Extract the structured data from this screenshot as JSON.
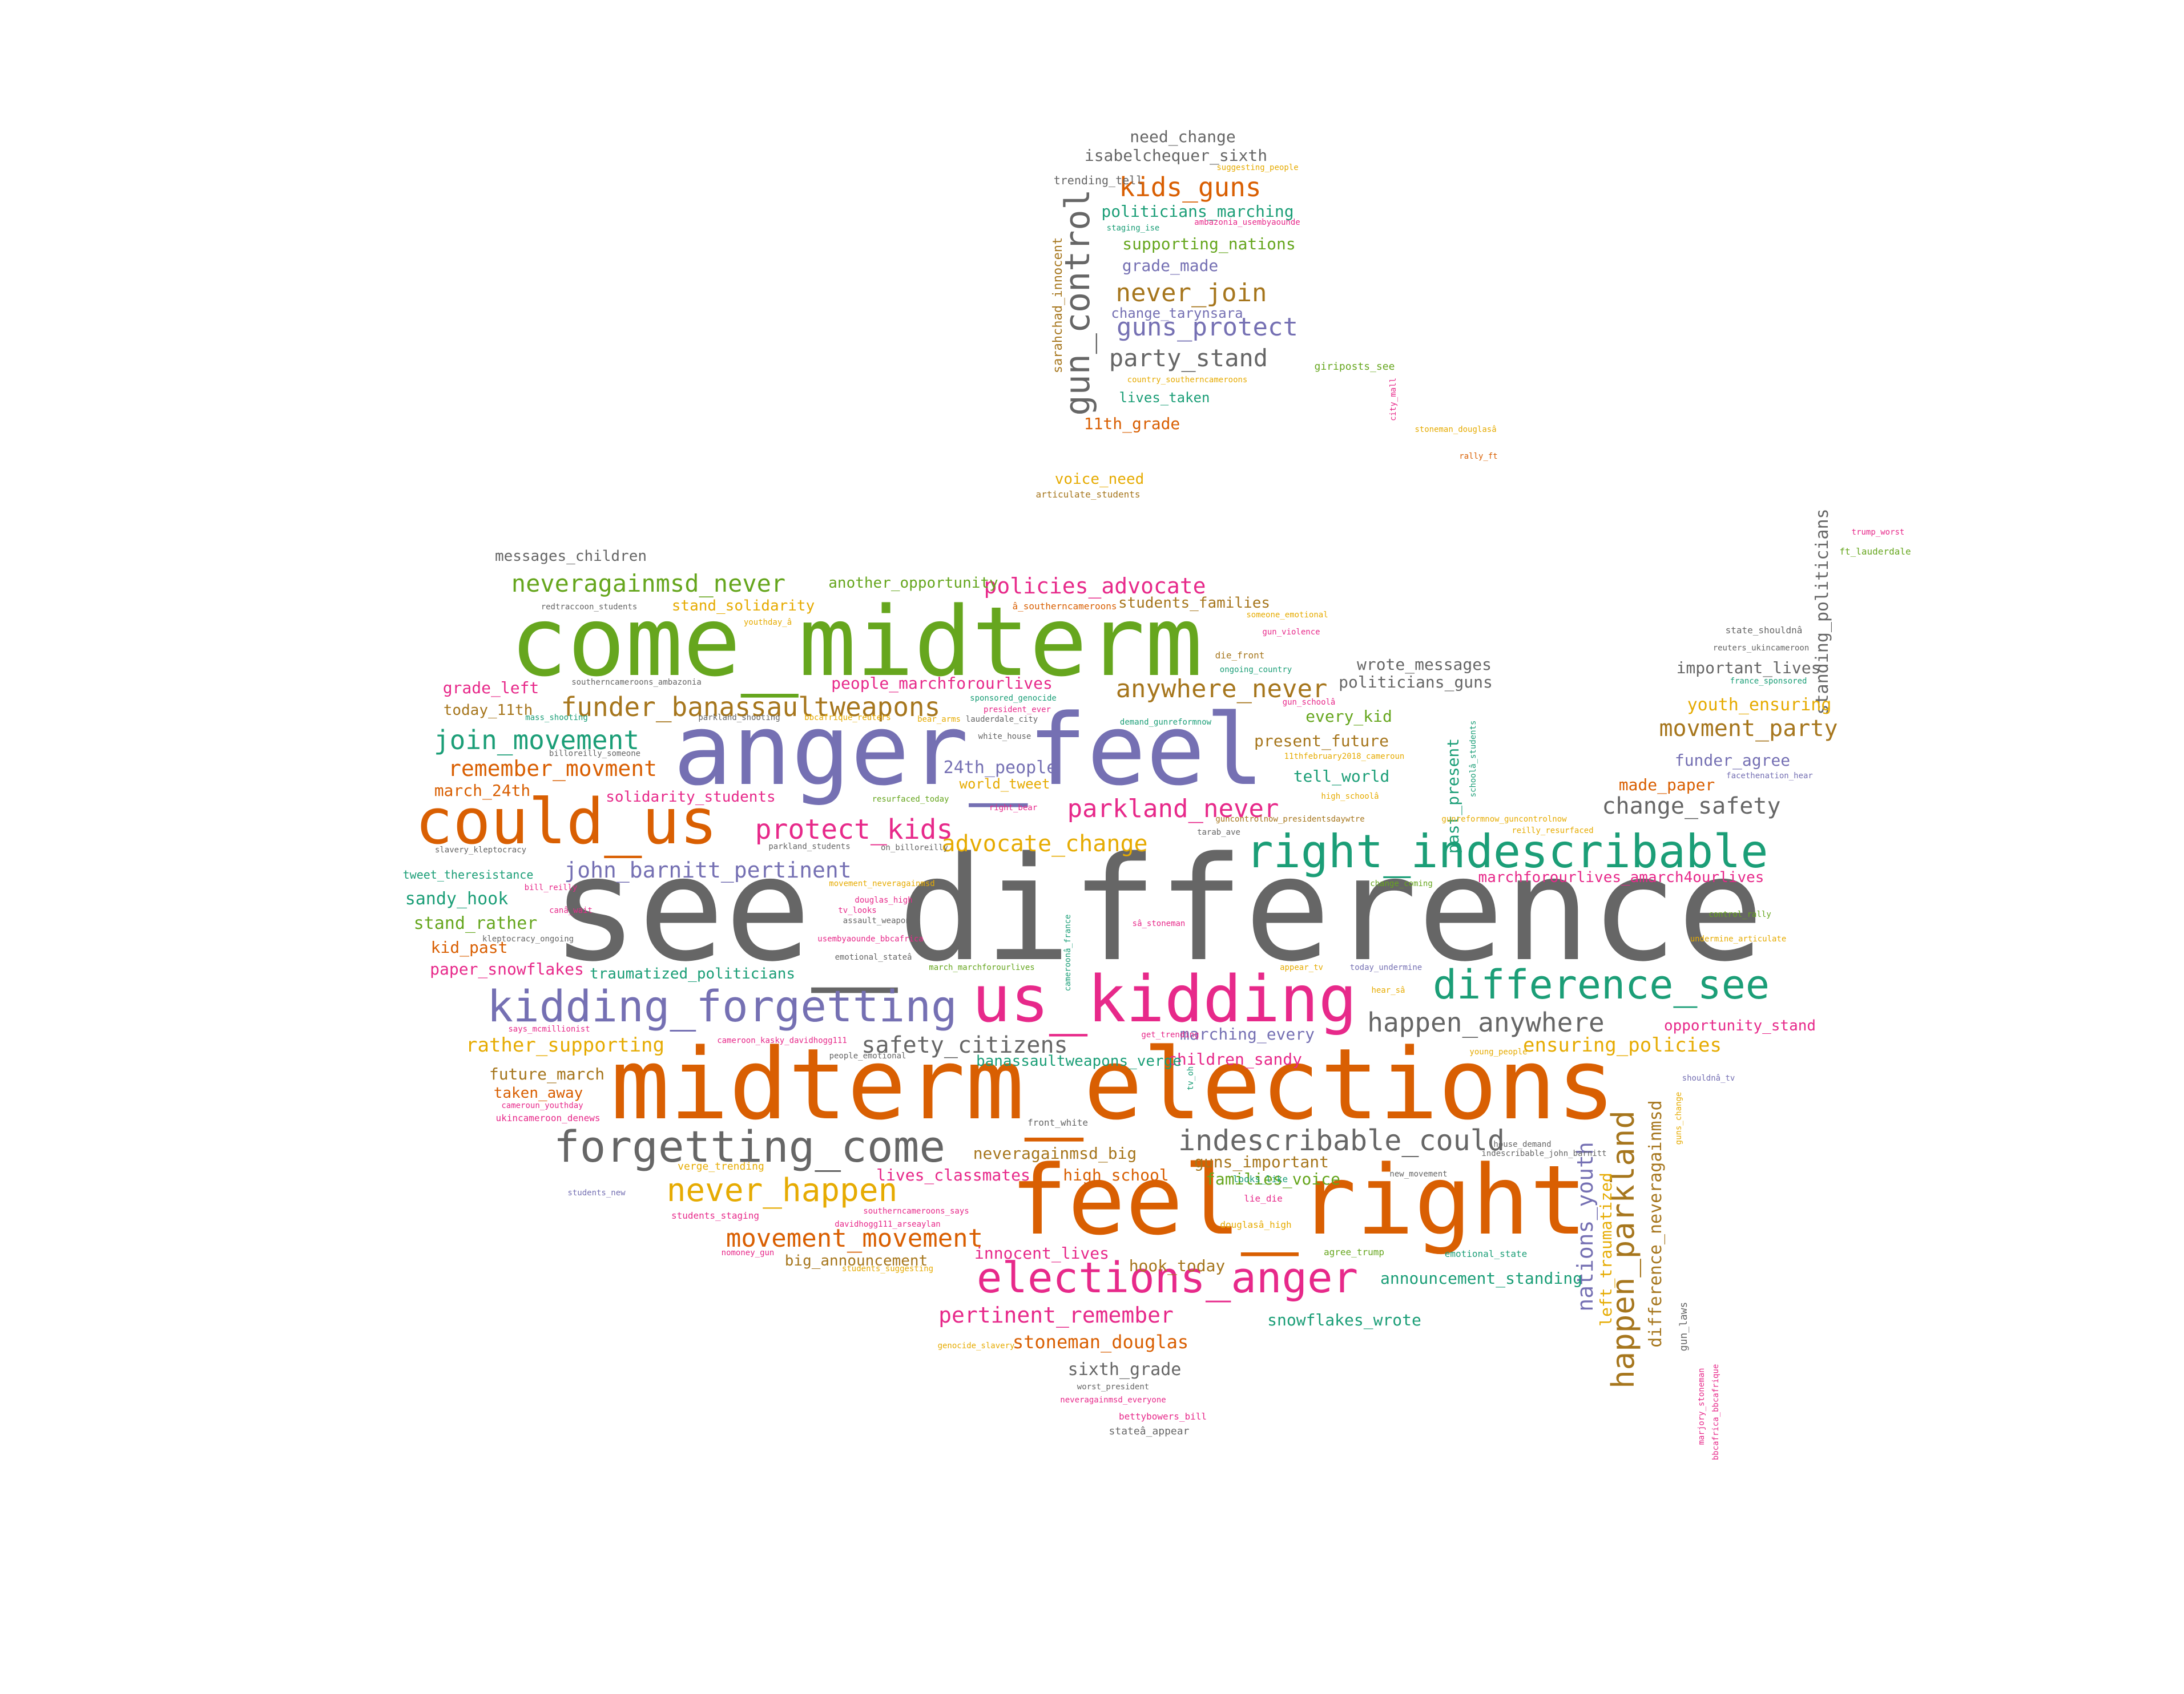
{
  "palette": {
    "green": "#66a61e",
    "orange": "#d95f02",
    "purple": "#7570b3",
    "pink": "#e7298a",
    "teal": "#1b9e77",
    "gold": "#e6ab02",
    "brown": "#a6761d",
    "gray": "#666666"
  },
  "words": {
    "w1": {
      "text": "see_difference",
      "color": "gray"
    },
    "w2": {
      "text": "come_midterm",
      "color": "green"
    },
    "w3": {
      "text": "midterm_elections",
      "color": "orange"
    },
    "w4": {
      "text": "anger_feel",
      "color": "purple"
    },
    "w5": {
      "text": "feel_right",
      "color": "orange"
    },
    "w6": {
      "text": "could_us",
      "color": "orange"
    },
    "w7": {
      "text": "us_kidding",
      "color": "pink"
    },
    "w8": {
      "text": "right_indescribable",
      "color": "teal"
    },
    "w9": {
      "text": "kidding_forgetting",
      "color": "purple"
    },
    "w10": {
      "text": "forgetting_come",
      "color": "gray"
    },
    "w11": {
      "text": "difference_see",
      "color": "teal"
    },
    "w12": {
      "text": "elections_anger",
      "color": "pink"
    },
    "w13": {
      "text": "never_happen",
      "color": "gold"
    },
    "w14": {
      "text": "gun_control",
      "color": "gray"
    },
    "w15": {
      "text": "happen_parkland",
      "color": "brown"
    },
    "w16": {
      "text": "indescribable_could",
      "color": "gray"
    },
    "w17": {
      "text": "funder_banassaultweapons",
      "color": "brown"
    },
    "w18": {
      "text": "protect_kids",
      "color": "pink"
    },
    "w19": {
      "text": "join_movement",
      "color": "teal"
    },
    "w20": {
      "text": "movement_movement",
      "color": "orange"
    },
    "w21": {
      "text": "happen_anywhere",
      "color": "gray"
    },
    "w22": {
      "text": "anywhere_never",
      "color": "brown"
    },
    "w23": {
      "text": "kids_guns",
      "color": "orange"
    },
    "w24": {
      "text": "parkland_never",
      "color": "pink"
    },
    "w25": {
      "text": "never_join",
      "color": "brown"
    },
    "w26": {
      "text": "neveragainmsd_never",
      "color": "green"
    },
    "w27": {
      "text": "remember_movment",
      "color": "orange"
    },
    "w28": {
      "text": "john_barnitt_pertinent",
      "color": "purple"
    },
    "w29": {
      "text": "pertinent_remember",
      "color": "pink"
    },
    "w30": {
      "text": "safety_citizens",
      "color": "gray"
    },
    "w31": {
      "text": "advocate_change",
      "color": "gold"
    },
    "w32": {
      "text": "guns_protect",
      "color": "purple"
    },
    "w33": {
      "text": "party_stand",
      "color": "gray"
    },
    "w34": {
      "text": "change_safety",
      "color": "gray"
    },
    "w35": {
      "text": "movment_party",
      "color": "brown"
    },
    "w36": {
      "text": "policies_advocate",
      "color": "pink"
    },
    "w37": {
      "text": "nations_youth",
      "color": "purple"
    },
    "w38": {
      "text": "stoneman_douglas",
      "color": "orange"
    },
    "w39": {
      "text": "rather_supporting",
      "color": "gold"
    },
    "w40": {
      "text": "ensuring_policies",
      "color": "gold"
    },
    "w41": {
      "text": "24th_people",
      "color": "purple"
    },
    "w42": {
      "text": "sixth_grade",
      "color": "gray"
    },
    "w43": {
      "text": "difference_neveragainmsd",
      "color": "brown"
    },
    "w44": {
      "text": "standing_politicians",
      "color": "gray"
    },
    "w45": {
      "text": "messages_children",
      "color": "gray"
    },
    "w46": {
      "text": "need_change",
      "color": "gray"
    },
    "w47": {
      "text": "isabelchequer_sixth",
      "color": "gray"
    },
    "w48": {
      "text": "trending_tell",
      "color": "gray"
    },
    "w49": {
      "text": "politicians_marching",
      "color": "teal"
    },
    "w50": {
      "text": "supporting_nations",
      "color": "green"
    },
    "w51": {
      "text": "grade_made",
      "color": "purple"
    },
    "w52": {
      "text": "sarahchad_innocent",
      "color": "brown"
    },
    "w53": {
      "text": "change_tarynsara",
      "color": "purple"
    },
    "w54": {
      "text": "lives_taken",
      "color": "teal"
    },
    "w55": {
      "text": "11th_grade",
      "color": "orange"
    },
    "w56": {
      "text": "voice_need",
      "color": "gold"
    },
    "w57": {
      "text": "articulate_students",
      "color": "brown"
    },
    "w58": {
      "text": "giriposts_see",
      "color": "green"
    },
    "w59": {
      "text": "stoneman_douglasâ",
      "color": "gold"
    },
    "w60": {
      "text": "rally_ft",
      "color": "orange"
    },
    "w61": {
      "text": "country_southerncameroons",
      "color": "gold"
    },
    "w62": {
      "text": "staging_ise",
      "color": "teal"
    },
    "w63": {
      "text": "ambazonia_usembyaounde",
      "color": "pink"
    },
    "w64": {
      "text": "suggesting_people",
      "color": "gold"
    },
    "w65": {
      "text": "city_mall",
      "color": "pink"
    },
    "w66": {
      "text": "another_opportunity",
      "color": "green"
    },
    "w67": {
      "text": "stand_solidarity",
      "color": "gold"
    },
    "w68": {
      "text": "students_families",
      "color": "brown"
    },
    "w69": {
      "text": "redtraccoon_students",
      "color": "gray"
    },
    "w70": {
      "text": "â_southerncameroons",
      "color": "orange"
    },
    "w71": {
      "text": "someone_emotional",
      "color": "gold"
    },
    "w72": {
      "text": "gun_violence",
      "color": "pink"
    },
    "w73": {
      "text": "wrote_messages",
      "color": "gray"
    },
    "w74": {
      "text": "politicians_guns",
      "color": "gray"
    },
    "w75": {
      "text": "grade_left",
      "color": "pink"
    },
    "w76": {
      "text": "today_11th",
      "color": "brown"
    },
    "w77": {
      "text": "people_marchforourlives",
      "color": "pink"
    },
    "w78": {
      "text": "sponsored_genocide",
      "color": "teal"
    },
    "w79": {
      "text": "die_front",
      "color": "brown"
    },
    "w80": {
      "text": "ongoing_country",
      "color": "teal"
    },
    "w81": {
      "text": "important_lives",
      "color": "gray"
    },
    "w82": {
      "text": "youth_ensuring",
      "color": "gold"
    },
    "w83": {
      "text": "funder_agree",
      "color": "purple"
    },
    "w84": {
      "text": "made_paper",
      "color": "orange"
    },
    "w85": {
      "text": "every_kid",
      "color": "green"
    },
    "w86": {
      "text": "present_future",
      "color": "brown"
    },
    "w87": {
      "text": "tell_world",
      "color": "teal"
    },
    "w88": {
      "text": "past_present",
      "color": "teal"
    },
    "w89": {
      "text": "march_24th",
      "color": "orange"
    },
    "w90": {
      "text": "solidarity_students",
      "color": "pink"
    },
    "w91": {
      "text": "sandy_hook",
      "color": "teal"
    },
    "w92": {
      "text": "stand_rather",
      "color": "green"
    },
    "w93": {
      "text": "kid_past",
      "color": "orange"
    },
    "w94": {
      "text": "paper_snowflakes",
      "color": "pink"
    },
    "w95": {
      "text": "traumatized_politicians",
      "color": "teal"
    },
    "w96": {
      "text": "tweet_theresistance",
      "color": "teal"
    },
    "w97": {
      "text": "marchforourlives_amarch4ourlives",
      "color": "pink"
    },
    "w98": {
      "text": "opportunity_stand",
      "color": "pink"
    },
    "w99": {
      "text": "marching_every",
      "color": "purple"
    },
    "w100": {
      "text": "children_sandy",
      "color": "pink"
    },
    "w101": {
      "text": "future_march",
      "color": "brown"
    },
    "w102": {
      "text": "taken_away",
      "color": "orange"
    },
    "w103": {
      "text": "neveragainmsd_big",
      "color": "brown"
    },
    "w104": {
      "text": "guns_important",
      "color": "brown"
    },
    "w105": {
      "text": "lives_classmates",
      "color": "pink"
    },
    "w106": {
      "text": "high_school",
      "color": "orange"
    },
    "w107": {
      "text": "families_voice",
      "color": "green"
    },
    "w108": {
      "text": "innocent_lives",
      "color": "pink"
    },
    "w109": {
      "text": "big_announcement",
      "color": "brown"
    },
    "w110": {
      "text": "hook_today",
      "color": "brown"
    },
    "w111": {
      "text": "announcement_standing",
      "color": "teal"
    },
    "w112": {
      "text": "snowflakes_wrote",
      "color": "teal"
    },
    "w113": {
      "text": "left_traumatized",
      "color": "gold"
    },
    "w114": {
      "text": "trump_worst",
      "color": "pink"
    },
    "w115": {
      "text": "ft_lauderdale",
      "color": "green"
    },
    "w116": {
      "text": "gun_laws",
      "color": "gray"
    },
    "w117": {
      "text": "marjory_stoneman",
      "color": "pink"
    },
    "w118": {
      "text": "bbcafrica_bbcafrique",
      "color": "pink"
    },
    "w119": {
      "text": "bettybowers_bill",
      "color": "pink"
    },
    "w120": {
      "text": "stateâ_appear",
      "color": "gray"
    },
    "w121": {
      "text": "worst_president",
      "color": "gray"
    },
    "w122": {
      "text": "genocide_slavery",
      "color": "gold"
    },
    "w123": {
      "text": "state_shouldnâ",
      "color": "gray"
    },
    "w124": {
      "text": "reuters_ukincameroon",
      "color": "gray"
    },
    "w125": {
      "text": "france_sponsored",
      "color": "teal"
    },
    "w126": {
      "text": "facethenation_hear",
      "color": "purple"
    },
    "w127": {
      "text": "neveragainmsd_everyone",
      "color": "pink"
    },
    "w128": {
      "text": "ukincameroon_denews",
      "color": "pink"
    },
    "w129": {
      "text": "cameroun_youthday",
      "color": "pink"
    },
    "w130": {
      "text": "verge_trending",
      "color": "gold"
    },
    "w131": {
      "text": "students_new",
      "color": "purple"
    },
    "w132": {
      "text": "students_staging",
      "color": "pink"
    },
    "w133": {
      "text": "southerncameroons_says",
      "color": "pink"
    },
    "w134": {
      "text": "front_white",
      "color": "gray"
    },
    "w135": {
      "text": "bill_reilly",
      "color": "pink"
    },
    "w136": {
      "text": "slavery_kleptocracy",
      "color": "gray"
    },
    "w137": {
      "text": "parkland_students",
      "color": "gray"
    },
    "w138": {
      "text": "world_tweet",
      "color": "gold"
    },
    "w139": {
      "text": "resurfaced_today",
      "color": "green"
    },
    "w140": {
      "text": "white_house",
      "color": "gray"
    },
    "w141": {
      "text": "president_ever",
      "color": "pink"
    },
    "w142": {
      "text": "youthday_â",
      "color": "gold"
    },
    "w143": {
      "text": "mass_shooting",
      "color": "teal"
    },
    "w144": {
      "text": "douglas_high",
      "color": "pink"
    },
    "w145": {
      "text": "tv_looks",
      "color": "pink"
    },
    "w146": {
      "text": "assault_weapons",
      "color": "gray"
    },
    "w147": {
      "text": "emotional_stateâ",
      "color": "gray"
    },
    "w148": {
      "text": "banassaultweapons_verge",
      "color": "teal"
    },
    "w149": {
      "text": "get_trending",
      "color": "pink"
    },
    "w150": {
      "text": "young_people",
      "color": "gold"
    },
    "w151": {
      "text": "shouldnâ_tv",
      "color": "purple"
    },
    "w152": {
      "text": "cameroon_kasky_davidhogg111",
      "color": "pink"
    },
    "w153": {
      "text": "says_mcmillionist",
      "color": "pink"
    },
    "w154": {
      "text": "demand_gunreformnow",
      "color": "teal"
    },
    "w155": {
      "text": "looks_like",
      "color": "teal"
    },
    "w156": {
      "text": "lie_die",
      "color": "pink"
    },
    "w157": {
      "text": "douglasâ_high",
      "color": "gold"
    },
    "w158": {
      "text": "agree_trump",
      "color": "green"
    },
    "w159": {
      "text": "emotional_state",
      "color": "teal"
    },
    "w160": {
      "text": "new_movement",
      "color": "gray"
    },
    "w161": {
      "text": "house_demand",
      "color": "gray"
    },
    "w162": {
      "text": "indescribable_john_barnitt",
      "color": "gray"
    },
    "w163": {
      "text": "gunreformnow_guncontrolnow",
      "color": "gold"
    },
    "w164": {
      "text": "reilly_resurfaced",
      "color": "gold"
    },
    "w165": {
      "text": "undermine_articulate",
      "color": "gold"
    },
    "w166": {
      "text": "control_rally",
      "color": "green"
    },
    "w167": {
      "text": "change_coming",
      "color": "green"
    },
    "w168": {
      "text": "hear_sâ",
      "color": "gold"
    },
    "w169": {
      "text": "appear_tv",
      "color": "gold"
    },
    "w170": {
      "text": "today_undermine",
      "color": "purple"
    },
    "w171": {
      "text": "11thfebruary2018_cameroun",
      "color": "gold"
    },
    "w172": {
      "text": "high_schoolâ",
      "color": "gold"
    },
    "w173": {
      "text": "schoolâ_students",
      "color": "teal"
    },
    "w174": {
      "text": "sâ_stoneman",
      "color": "pink"
    },
    "w175": {
      "text": "cameroonâ_france",
      "color": "teal"
    },
    "w176": {
      "text": "usembyaounde_bbcafrica",
      "color": "pink"
    },
    "w177": {
      "text": "kleptocracy_ongoing",
      "color": "gray"
    },
    "w178": {
      "text": "canâ_wait",
      "color": "pink"
    },
    "w179": {
      "text": "billoreilly_someone",
      "color": "gray"
    },
    "w180": {
      "text": "southerncameroons_ambazonia",
      "color": "gray"
    },
    "w181": {
      "text": "parkland_shooting",
      "color": "gray"
    },
    "w182": {
      "text": "lauderdale_city",
      "color": "gray"
    },
    "w183": {
      "text": "bear_arms",
      "color": "gold"
    },
    "w184": {
      "text": "right_bear",
      "color": "pink"
    },
    "w185": {
      "text": "on_billoreilly",
      "color": "gray"
    },
    "w186": {
      "text": "people_emotional",
      "color": "gray"
    },
    "w187": {
      "text": "bbcafrique_reuters",
      "color": "gold"
    },
    "w188": {
      "text": "movement_neveragainmsd",
      "color": "gold"
    },
    "w189": {
      "text": "march_marchforourlives",
      "color": "green"
    },
    "w190": {
      "text": "tv_oh",
      "color": "teal"
    },
    "w191": {
      "text": "guncontrolnow_presidentsdaywtre",
      "color": "brown"
    },
    "w192": {
      "text": "tarab_ave",
      "color": "gray"
    },
    "w193": {
      "text": "students_suggesting",
      "color": "gold"
    },
    "w194": {
      "text": "gun_schoolâ",
      "color": "pink"
    },
    "w195": {
      "text": "davidhogg111_arseaylan",
      "color": "pink"
    },
    "w196": {
      "text": "nomoney_gun",
      "color": "pink"
    },
    "w197": {
      "text": "guns_change",
      "color": "gold"
    }
  }
}
